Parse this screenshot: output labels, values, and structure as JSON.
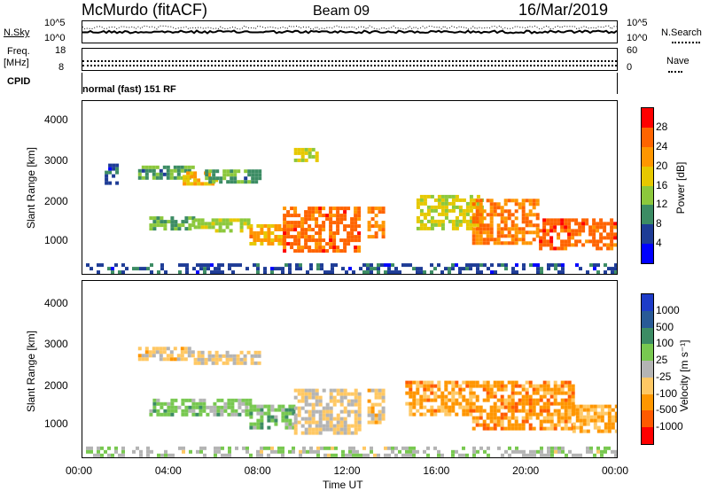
{
  "header": {
    "station": "McMurdo (fitACF)",
    "beam": "Beam 09",
    "date": "16/Mar/2019"
  },
  "noise_panel": {
    "left_label": "N.Sky",
    "left_ticks": [
      "10^5",
      "10^0"
    ],
    "right_ticks": [
      "10^5",
      "10^0"
    ],
    "right_label": "N.Search"
  },
  "freq_panel": {
    "left_label_top": "Freq.",
    "left_label_bottom": "[MHz]",
    "left_ticks": [
      "18",
      "8"
    ],
    "right_ticks": [
      "60",
      "0"
    ],
    "right_label": "Nave"
  },
  "cpid_panel": {
    "label": "CPID",
    "text": "normal (fast) 151 RF"
  },
  "power_panel": {
    "ylabel": "Slant Range [km]",
    "yticks": [
      "4000",
      "3000",
      "2000",
      "1000"
    ],
    "colorbar_label": "Power [dB]",
    "colorbar_ticks": [
      "28",
      "24",
      "20",
      "16",
      "12",
      "8",
      "4"
    ],
    "colorbar_colors": [
      "#ff0000",
      "#ff6400",
      "#ff9600",
      "#e6c800",
      "#8cc83c",
      "#3c8c64",
      "#1e3c96",
      "#0000ff"
    ]
  },
  "velocity_panel": {
    "ylabel": "Slant Range [km]",
    "yticks": [
      "4000",
      "3000",
      "2000",
      "1000"
    ],
    "colorbar_label": "Velocity [m s⁻¹]",
    "colorbar_ticks": [
      "1000",
      "500",
      "100",
      "25",
      "-25",
      "-100",
      "-500",
      "-1000"
    ],
    "colorbar_colors": [
      "#1e3cc8",
      "#285a96",
      "#3c8c64",
      "#78c850",
      "#b4b4b4",
      "#ffc864",
      "#ff9600",
      "#ff5a00",
      "#ff0000"
    ]
  },
  "x_axis": {
    "ticks": [
      "00:00",
      "04:00",
      "08:00",
      "12:00",
      "16:00",
      "20:00",
      "00:00"
    ],
    "label": "Time UT"
  },
  "chart_data": [
    {
      "type": "heatmap",
      "title": "McMurdo (fitACF) Beam 09 16/Mar/2019",
      "xlabel": "Time UT",
      "ylabel": "Slant Range [km]",
      "xlim": [
        0,
        24
      ],
      "ylim": [
        180,
        4600
      ],
      "color_quantity": "Power [dB]",
      "color_range": [
        0,
        30
      ],
      "regions": [
        {
          "t": [
            1.0,
            1.5
          ],
          "r": [
            2500,
            3000
          ],
          "v": 6
        },
        {
          "t": [
            2.5,
            5.0
          ],
          "r": [
            2600,
            2950
          ],
          "v": 10
        },
        {
          "t": [
            4.5,
            6.0
          ],
          "r": [
            2500,
            2800
          ],
          "v": 18
        },
        {
          "t": [
            5.5,
            8.0
          ],
          "r": [
            2550,
            2850
          ],
          "v": 10
        },
        {
          "t": [
            3.0,
            5.0
          ],
          "r": [
            1300,
            1650
          ],
          "v": 12
        },
        {
          "t": [
            5.0,
            7.5
          ],
          "r": [
            1250,
            1600
          ],
          "v": 14
        },
        {
          "t": [
            7.5,
            9.0
          ],
          "r": [
            950,
            1450
          ],
          "v": 20
        },
        {
          "t": [
            9.0,
            12.5
          ],
          "r": [
            800,
            1900
          ],
          "v": 24
        },
        {
          "t": [
            9.5,
            10.5
          ],
          "r": [
            3100,
            3400
          ],
          "v": 16
        },
        {
          "t": [
            12.8,
            13.5
          ],
          "r": [
            1100,
            1900
          ],
          "v": 22
        },
        {
          "t": [
            15.0,
            18.0
          ],
          "r": [
            1300,
            2200
          ],
          "v": 16
        },
        {
          "t": [
            17.5,
            20.5
          ],
          "r": [
            1000,
            2100
          ],
          "v": 22
        },
        {
          "t": [
            20.5,
            24.0
          ],
          "r": [
            800,
            1600
          ],
          "v": 24
        },
        {
          "t": [
            0.0,
            24.0
          ],
          "r": [
            200,
            450
          ],
          "v": 6
        }
      ]
    },
    {
      "type": "heatmap",
      "title": "McMurdo (fitACF) Beam 09 16/Mar/2019",
      "xlabel": "Time UT",
      "ylabel": "Slant Range [km]",
      "xlim": [
        0,
        24
      ],
      "ylim": [
        180,
        4600
      ],
      "color_quantity": "Velocity [m s-1]",
      "color_range": [
        -1000,
        1000
      ],
      "regions": [
        {
          "t": [
            2.5,
            5.0
          ],
          "r": [
            2600,
            2950
          ],
          "v": -200
        },
        {
          "t": [
            5.0,
            8.0
          ],
          "r": [
            2550,
            2850
          ],
          "v": -150
        },
        {
          "t": [
            3.0,
            7.5
          ],
          "r": [
            1250,
            1650
          ],
          "v": 200
        },
        {
          "t": [
            7.5,
            9.5
          ],
          "r": [
            900,
            1500
          ],
          "v": 250
        },
        {
          "t": [
            9.5,
            12.5
          ],
          "r": [
            800,
            1900
          ],
          "v": -100
        },
        {
          "t": [
            12.8,
            13.5
          ],
          "r": [
            1100,
            1900
          ],
          "v": -200
        },
        {
          "t": [
            14.5,
            17.5
          ],
          "r": [
            1300,
            2100
          ],
          "v": -400
        },
        {
          "t": [
            17.5,
            22.0
          ],
          "r": [
            900,
            2100
          ],
          "v": -450
        },
        {
          "t": [
            22.0,
            24.0
          ],
          "r": [
            800,
            1500
          ],
          "v": -350
        },
        {
          "t": [
            0.0,
            24.0
          ],
          "r": [
            200,
            450
          ],
          "v": 50
        }
      ]
    }
  ]
}
